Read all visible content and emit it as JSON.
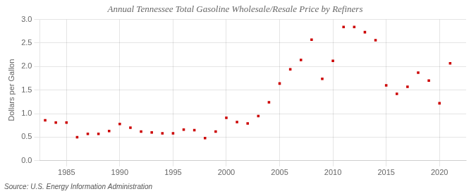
{
  "chart_data": {
    "type": "scatter",
    "title": "Annual Tennessee Total Gasoline Wholesale/Resale Price by Refiners",
    "y_label": "Dollars per Gallon",
    "annotation": "Source: U.S. Energy Information Administration",
    "x": [
      1983,
      1984,
      1985,
      1986,
      1987,
      1988,
      1989,
      1990,
      1991,
      1992,
      1993,
      1994,
      1995,
      1996,
      1997,
      1998,
      1999,
      2000,
      2001,
      2002,
      2003,
      2004,
      2005,
      2006,
      2007,
      2008,
      2009,
      2010,
      2011,
      2012,
      2013,
      2014,
      2015,
      2016,
      2017,
      2018,
      2019,
      2020,
      2021
    ],
    "values": [
      0.86,
      0.81,
      0.81,
      0.5,
      0.57,
      0.57,
      0.63,
      0.78,
      0.7,
      0.62,
      0.6,
      0.58,
      0.58,
      0.66,
      0.65,
      0.48,
      0.62,
      0.91,
      0.82,
      0.79,
      0.95,
      1.24,
      1.64,
      1.94,
      2.14,
      2.57,
      1.74,
      2.12,
      2.84,
      2.84,
      2.73,
      2.56,
      1.6,
      1.42,
      1.57,
      1.87,
      1.7,
      1.22,
      2.07
    ],
    "color": "#cc0000",
    "marker": "square",
    "xlim": [
      1982.5,
      2022.5
    ],
    "xticks": [
      1985,
      1990,
      1995,
      2000,
      2005,
      2010,
      2015,
      2020
    ],
    "ylim": [
      0.0,
      3.0
    ],
    "yticks": [
      {
        "value": 0,
        "label": "0.0"
      },
      0.5,
      {
        "value": 1,
        "label": "1.0"
      },
      1.5,
      {
        "value": 2,
        "label": "2.0"
      },
      2.5,
      {
        "value": 3,
        "label": "3.0"
      }
    ],
    "grid": true
  }
}
